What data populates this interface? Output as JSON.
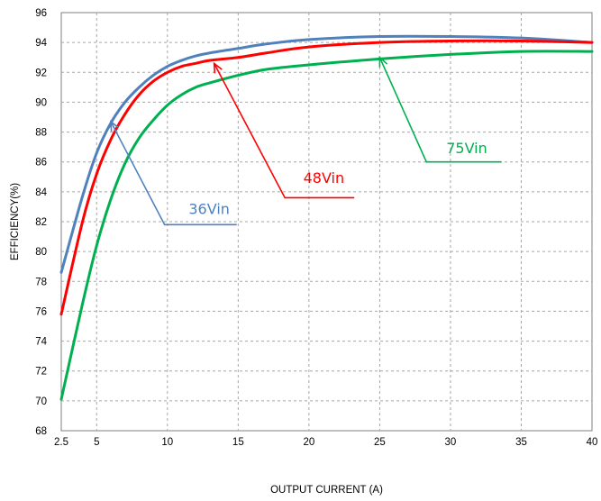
{
  "chart_data": {
    "type": "line",
    "title": "",
    "xlabel": "OUTPUT CURRENT (A)",
    "ylabel": "EFFICIENCY(%)",
    "xlim": [
      2.5,
      40
    ],
    "ylim": [
      68,
      96
    ],
    "xticks": [
      2.5,
      5,
      10,
      15,
      20,
      25,
      30,
      35,
      40
    ],
    "yticks": [
      68,
      70,
      72,
      74,
      76,
      78,
      80,
      82,
      84,
      86,
      88,
      90,
      92,
      94,
      96
    ],
    "grid": true,
    "legend": "none",
    "series": [
      {
        "name": "36Vin",
        "color": "#4f81bd",
        "x": [
          2.5,
          4,
          5,
          6,
          7,
          8,
          9,
          10,
          11,
          12,
          13,
          15,
          17,
          20,
          25,
          30,
          35,
          40
        ],
        "y": [
          78.6,
          83.7,
          86.6,
          88.6,
          90.0,
          91.0,
          91.8,
          92.4,
          92.8,
          93.1,
          93.3,
          93.6,
          93.9,
          94.2,
          94.4,
          94.4,
          94.3,
          94.0
        ],
        "annotation": {
          "label": "36Vin",
          "point": [
            6,
            88.7
          ],
          "elbow": [
            9.8,
            81.8
          ],
          "end": [
            14.9,
            81.8
          ],
          "text_at": [
            11.5,
            82.5
          ]
        }
      },
      {
        "name": "48Vin",
        "color": "#ff0000",
        "x": [
          2.5,
          4,
          5,
          6,
          7,
          8,
          9,
          10,
          11,
          12,
          13,
          15,
          17,
          20,
          25,
          30,
          35,
          40
        ],
        "y": [
          75.8,
          82.0,
          85.2,
          87.5,
          89.2,
          90.5,
          91.4,
          92.0,
          92.4,
          92.6,
          92.8,
          93.0,
          93.3,
          93.7,
          94.0,
          94.1,
          94.1,
          94.0
        ],
        "annotation": {
          "label": "48Vin",
          "point": [
            13.3,
            92.6
          ],
          "elbow": [
            18.3,
            83.6
          ],
          "end": [
            23.2,
            83.6
          ],
          "text_at": [
            19.6,
            84.6
          ]
        }
      },
      {
        "name": "75Vin",
        "color": "#00b050",
        "x": [
          2.5,
          4,
          5,
          6,
          7,
          8,
          9,
          10,
          11,
          12,
          13,
          15,
          17,
          20,
          25,
          30,
          35,
          40
        ],
        "y": [
          70.1,
          76.5,
          80.4,
          83.5,
          85.9,
          87.6,
          88.8,
          89.8,
          90.5,
          91.0,
          91.3,
          91.8,
          92.2,
          92.5,
          92.9,
          93.2,
          93.4,
          93.4
        ],
        "annotation": {
          "label": "75Vin",
          "point": [
            25,
            93.0
          ],
          "elbow": [
            28.3,
            86.0
          ],
          "end": [
            33.6,
            86.0
          ],
          "text_at": [
            29.7,
            86.6
          ]
        }
      }
    ]
  }
}
